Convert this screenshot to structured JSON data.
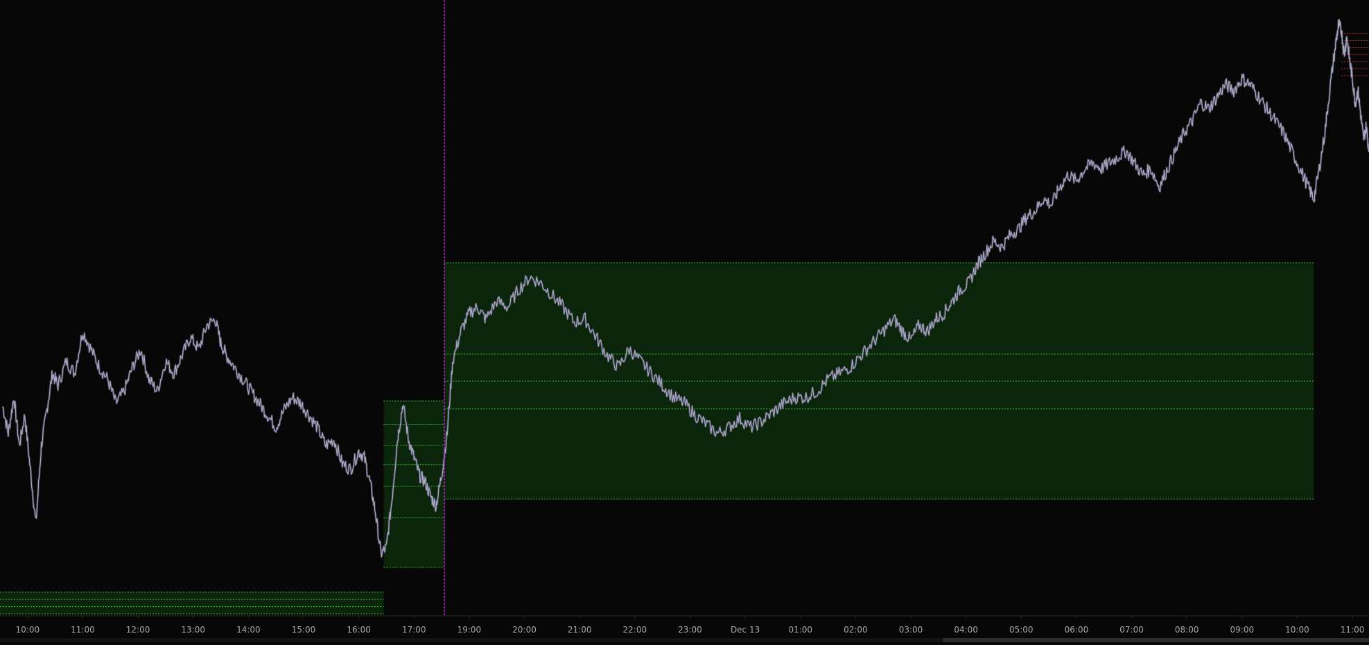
{
  "colors": {
    "background": "#070707",
    "price_line": "#a9a8c4",
    "price_line_shadow": "#55546a",
    "demand_zone_fill": "#0c2a0c",
    "demand_zone_border": "#3ed63e",
    "supply_zone_border": "#c42525",
    "session_marker": "#c020d0",
    "axis_text": "#a8a8a8",
    "axis_line": "#2a2a2a"
  },
  "chart_data": {
    "type": "line",
    "title": "",
    "xlabel": "",
    "ylabel": "",
    "x_unit": "hours",
    "xlim": [
      9.5,
      34.3
    ],
    "ylim": [
      0,
      100
    ],
    "grid": false,
    "legend": "none",
    "x_ticks": [
      {
        "x": 10,
        "label": "10:00"
      },
      {
        "x": 11,
        "label": "11:00"
      },
      {
        "x": 12,
        "label": "12:00"
      },
      {
        "x": 13,
        "label": "13:00"
      },
      {
        "x": 14,
        "label": "14:00"
      },
      {
        "x": 15,
        "label": "15:00"
      },
      {
        "x": 16,
        "label": "16:00"
      },
      {
        "x": 17,
        "label": "17:00"
      },
      {
        "x": 18,
        "label": "19:00"
      },
      {
        "x": 19,
        "label": "20:00"
      },
      {
        "x": 20,
        "label": "21:00"
      },
      {
        "x": 21,
        "label": "22:00"
      },
      {
        "x": 22,
        "label": "23:00"
      },
      {
        "x": 23,
        "label": "Dec 13"
      },
      {
        "x": 24,
        "label": "01:00"
      },
      {
        "x": 25,
        "label": "02:00"
      },
      {
        "x": 26,
        "label": "03:00"
      },
      {
        "x": 27,
        "label": "04:00"
      },
      {
        "x": 28,
        "label": "05:00"
      },
      {
        "x": 29,
        "label": "06:00"
      },
      {
        "x": 30,
        "label": "07:00"
      },
      {
        "x": 31,
        "label": "08:00"
      },
      {
        "x": 32,
        "label": "09:00"
      },
      {
        "x": 33,
        "label": "10:00"
      },
      {
        "x": 34,
        "label": "11:00"
      }
    ],
    "series": [
      {
        "points": [
          [
            9.55,
            34.5
          ],
          [
            9.65,
            30
          ],
          [
            9.75,
            36
          ],
          [
            9.85,
            28
          ],
          [
            9.95,
            33
          ],
          [
            10.05,
            24
          ],
          [
            10.15,
            15
          ],
          [
            10.25,
            28
          ],
          [
            10.35,
            34
          ],
          [
            10.45,
            40
          ],
          [
            10.55,
            38
          ],
          [
            10.7,
            42
          ],
          [
            10.85,
            40
          ],
          [
            11.0,
            47
          ],
          [
            11.15,
            44
          ],
          [
            11.3,
            41
          ],
          [
            11.45,
            39
          ],
          [
            11.6,
            35
          ],
          [
            11.75,
            37
          ],
          [
            11.9,
            41
          ],
          [
            12.05,
            44
          ],
          [
            12.2,
            39
          ],
          [
            12.35,
            37
          ],
          [
            12.5,
            42
          ],
          [
            12.65,
            40
          ],
          [
            12.8,
            43
          ],
          [
            12.95,
            46
          ],
          [
            13.1,
            44
          ],
          [
            13.25,
            48
          ],
          [
            13.4,
            49
          ],
          [
            13.5,
            45
          ],
          [
            13.6,
            43
          ],
          [
            13.75,
            41
          ],
          [
            13.9,
            39
          ],
          [
            14.05,
            37
          ],
          [
            14.2,
            35
          ],
          [
            14.35,
            33
          ],
          [
            14.5,
            31
          ],
          [
            14.65,
            34
          ],
          [
            14.8,
            36
          ],
          [
            14.95,
            35
          ],
          [
            15.1,
            33
          ],
          [
            15.25,
            31
          ],
          [
            15.4,
            28
          ],
          [
            15.55,
            29
          ],
          [
            15.7,
            25
          ],
          [
            15.85,
            24
          ],
          [
            16.0,
            27
          ],
          [
            16.1,
            26
          ],
          [
            16.2,
            22
          ],
          [
            16.3,
            17
          ],
          [
            16.4,
            10
          ],
          [
            16.5,
            11
          ],
          [
            16.6,
            19
          ],
          [
            16.7,
            29
          ],
          [
            16.8,
            35
          ],
          [
            16.9,
            29
          ],
          [
            17.0,
            26
          ],
          [
            17.1,
            23
          ],
          [
            17.2,
            22
          ],
          [
            17.3,
            19.5
          ],
          [
            17.4,
            18
          ],
          [
            17.5,
            23
          ],
          [
            17.6,
            30
          ],
          [
            17.7,
            42
          ],
          [
            17.85,
            47
          ],
          [
            18.0,
            50
          ],
          [
            18.15,
            51
          ],
          [
            18.3,
            49
          ],
          [
            18.5,
            52
          ],
          [
            18.7,
            51
          ],
          [
            18.9,
            54
          ],
          [
            19.1,
            56
          ],
          [
            19.3,
            55
          ],
          [
            19.5,
            53
          ],
          [
            19.7,
            51
          ],
          [
            19.9,
            48.5
          ],
          [
            20.1,
            49
          ],
          [
            20.3,
            46
          ],
          [
            20.5,
            43
          ],
          [
            20.7,
            41
          ],
          [
            20.9,
            44
          ],
          [
            21.1,
            42
          ],
          [
            21.3,
            40
          ],
          [
            21.5,
            38
          ],
          [
            21.7,
            36
          ],
          [
            21.9,
            35
          ],
          [
            22.1,
            33
          ],
          [
            22.3,
            31.5
          ],
          [
            22.5,
            30
          ],
          [
            22.7,
            31
          ],
          [
            22.9,
            32.5
          ],
          [
            23.1,
            31
          ],
          [
            23.3,
            32
          ],
          [
            23.5,
            33.5
          ],
          [
            23.7,
            35
          ],
          [
            23.9,
            36
          ],
          [
            24.1,
            36
          ],
          [
            24.3,
            37
          ],
          [
            24.5,
            39
          ],
          [
            24.7,
            40
          ],
          [
            24.9,
            41
          ],
          [
            25.1,
            43
          ],
          [
            25.3,
            45
          ],
          [
            25.5,
            47
          ],
          [
            25.7,
            49
          ],
          [
            25.85,
            47
          ],
          [
            26.0,
            45.5
          ],
          [
            26.15,
            48
          ],
          [
            26.3,
            47
          ],
          [
            26.45,
            49
          ],
          [
            26.6,
            50
          ],
          [
            26.75,
            52
          ],
          [
            26.9,
            54
          ],
          [
            27.05,
            55
          ],
          [
            27.2,
            58
          ],
          [
            27.35,
            60
          ],
          [
            27.5,
            62
          ],
          [
            27.65,
            61
          ],
          [
            27.8,
            63
          ],
          [
            27.95,
            64
          ],
          [
            28.1,
            66
          ],
          [
            28.25,
            67
          ],
          [
            28.4,
            69
          ],
          [
            28.55,
            68
          ],
          [
            28.7,
            71
          ],
          [
            28.85,
            73
          ],
          [
            29.0,
            72
          ],
          [
            29.15,
            74
          ],
          [
            29.3,
            75
          ],
          [
            29.45,
            74
          ],
          [
            29.6,
            75
          ],
          [
            29.75,
            76
          ],
          [
            29.9,
            77
          ],
          [
            30.05,
            75
          ],
          [
            30.2,
            73
          ],
          [
            30.35,
            74
          ],
          [
            30.5,
            71
          ],
          [
            30.65,
            74
          ],
          [
            30.8,
            77
          ],
          [
            30.95,
            80
          ],
          [
            31.1,
            82
          ],
          [
            31.25,
            85
          ],
          [
            31.4,
            84
          ],
          [
            31.55,
            86
          ],
          [
            31.7,
            88
          ],
          [
            31.85,
            87
          ],
          [
            32.0,
            89
          ],
          [
            32.15,
            88
          ],
          [
            32.3,
            86
          ],
          [
            32.45,
            84
          ],
          [
            32.6,
            82
          ],
          [
            32.75,
            80
          ],
          [
            32.9,
            77
          ],
          [
            33.05,
            74
          ],
          [
            33.2,
            71
          ],
          [
            33.3,
            69
          ],
          [
            33.4,
            74
          ],
          [
            33.5,
            80
          ],
          [
            33.6,
            88
          ],
          [
            33.7,
            95
          ],
          [
            33.75,
            98
          ],
          [
            33.8,
            97
          ],
          [
            33.85,
            93
          ],
          [
            33.9,
            96
          ],
          [
            33.95,
            92
          ],
          [
            34.0,
            89
          ],
          [
            34.05,
            85
          ],
          [
            34.1,
            87
          ],
          [
            34.15,
            83
          ],
          [
            34.2,
            79
          ],
          [
            34.25,
            81
          ],
          [
            34.3,
            77
          ]
        ]
      }
    ],
    "demand_zones": [
      {
        "x0": 9.5,
        "x1": 16.45,
        "y_top": 3.6,
        "y_bottom": 0,
        "levels": [
          3.6,
          2.4,
          1.2,
          0
        ]
      },
      {
        "x0": 16.45,
        "x1": 17.55,
        "y_top": 35.4,
        "y_bottom": 7.7,
        "levels": [
          35.4,
          31.5,
          28,
          24.8,
          21.2,
          16,
          7.7
        ]
      },
      {
        "x0": 17.55,
        "x1": 33.3,
        "y_top": 58.4,
        "y_bottom": 19.1,
        "levels": [
          58.4,
          43.2,
          38.7,
          34.1,
          19.1
        ]
      }
    ],
    "supply_zones": [
      {
        "x0": 33.8,
        "x1": 34.3,
        "y_top": 96.5,
        "y_bottom": 89.5
      }
    ],
    "session_marker_x": 17.55
  }
}
